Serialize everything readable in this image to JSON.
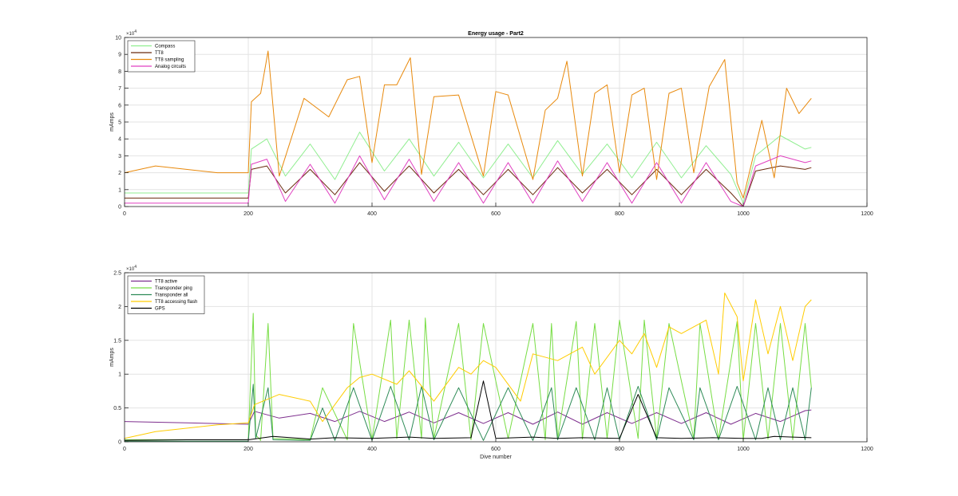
{
  "chart_data": [
    {
      "type": "line",
      "title": "Energy usage - Part2",
      "xlabel": "",
      "ylabel": "mAmps",
      "xlim": [
        0,
        1200
      ],
      "ylim": [
        0,
        100000
      ],
      "y_exponent_label": "×10",
      "y_exponent": "4",
      "xticks": [
        0,
        200,
        400,
        600,
        800,
        1000,
        1200
      ],
      "yticks": [
        0,
        10000,
        20000,
        30000,
        40000,
        50000,
        60000,
        70000,
        80000,
        90000,
        100000
      ],
      "ytick_labels": [
        "0",
        "1",
        "2",
        "3",
        "4",
        "5",
        "6",
        "7",
        "8",
        "9",
        "10"
      ],
      "grid": true,
      "legend_position": "top-left",
      "series": [
        {
          "name": "Compass",
          "color": "#90ee90",
          "x": [
            0,
            100,
            200,
            205,
            230,
            260,
            300,
            340,
            380,
            420,
            460,
            500,
            540,
            580,
            620,
            660,
            700,
            740,
            780,
            820,
            860,
            900,
            940,
            980,
            1000,
            1020,
            1060,
            1100,
            1110
          ],
          "y": [
            8000,
            8000,
            8000,
            34000,
            40000,
            18000,
            37000,
            16000,
            44000,
            21000,
            40000,
            18000,
            38000,
            17000,
            37000,
            17000,
            39000,
            19000,
            37000,
            17000,
            38000,
            17000,
            36000,
            19000,
            2000,
            30000,
            42000,
            34000,
            35000
          ]
        },
        {
          "name": "TT8",
          "color": "#6b2b0e",
          "x": [
            0,
            100,
            200,
            205,
            230,
            260,
            300,
            340,
            380,
            420,
            460,
            500,
            540,
            580,
            620,
            660,
            700,
            740,
            780,
            820,
            860,
            900,
            940,
            980,
            1000,
            1020,
            1060,
            1100,
            1110
          ],
          "y": [
            5000,
            5000,
            5000,
            22000,
            24000,
            8000,
            22000,
            7000,
            26000,
            9000,
            24000,
            8000,
            22000,
            7000,
            22000,
            7000,
            23000,
            8000,
            22000,
            7000,
            22000,
            7000,
            22000,
            8000,
            0,
            21000,
            24000,
            22000,
            23000
          ]
        },
        {
          "name": "TT8 sampling",
          "color": "#e8890c",
          "x": [
            0,
            50,
            100,
            150,
            200,
            205,
            220,
            232,
            250,
            290,
            330,
            360,
            380,
            400,
            420,
            440,
            462,
            480,
            500,
            540,
            580,
            600,
            620,
            660,
            680,
            700,
            715,
            740,
            760,
            780,
            800,
            820,
            840,
            860,
            880,
            900,
            920,
            945,
            970,
            990,
            1000,
            1030,
            1050,
            1070,
            1090,
            1110
          ],
          "y": [
            20000,
            24000,
            22000,
            20000,
            20000,
            62000,
            67000,
            92000,
            18000,
            64000,
            53000,
            75000,
            77000,
            26000,
            72000,
            72000,
            88000,
            19000,
            65000,
            66000,
            18000,
            68000,
            66000,
            16000,
            57000,
            64000,
            86000,
            18000,
            67000,
            72000,
            20000,
            66000,
            70000,
            16000,
            67000,
            70000,
            20000,
            71000,
            87000,
            14000,
            5000,
            51000,
            17000,
            70000,
            55000,
            64000
          ]
        },
        {
          "name": "Analog circuits",
          "color": "#e040c0",
          "x": [
            0,
            100,
            200,
            205,
            230,
            260,
            300,
            340,
            380,
            420,
            460,
            500,
            540,
            580,
            620,
            660,
            700,
            740,
            780,
            820,
            860,
            900,
            940,
            980,
            1000,
            1020,
            1060,
            1100,
            1110
          ],
          "y": [
            2000,
            2000,
            2000,
            25000,
            28000,
            3000,
            25000,
            2000,
            30000,
            4000,
            28000,
            3000,
            26000,
            2000,
            26000,
            2000,
            27000,
            3000,
            26000,
            2000,
            26000,
            2000,
            26000,
            3000,
            0,
            24000,
            30000,
            26000,
            27000
          ]
        }
      ]
    },
    {
      "type": "line",
      "title": "",
      "xlabel": "Dive number",
      "ylabel": "mAmps",
      "xlim": [
        0,
        1200
      ],
      "ylim": [
        0,
        25000
      ],
      "y_exponent_label": "×10",
      "y_exponent": "4",
      "xticks": [
        0,
        200,
        400,
        600,
        800,
        1000,
        1200
      ],
      "yticks": [
        0,
        5000,
        10000,
        15000,
        20000,
        25000
      ],
      "ytick_labels": [
        "0",
        "0.5",
        "1",
        "1.5",
        "2",
        "2.5"
      ],
      "grid": true,
      "legend_position": "top-left",
      "series": [
        {
          "name": "TT8 active",
          "color": "#7e2f8e",
          "x": [
            0,
            100,
            200,
            210,
            250,
            300,
            340,
            380,
            420,
            460,
            500,
            540,
            580,
            620,
            660,
            700,
            740,
            780,
            820,
            860,
            900,
            940,
            980,
            1020,
            1060,
            1100,
            1110
          ],
          "y": [
            3000,
            2800,
            2600,
            4500,
            3500,
            4200,
            3000,
            4500,
            3000,
            4400,
            2800,
            4300,
            2700,
            4300,
            2600,
            4400,
            2600,
            4300,
            2700,
            4300,
            2700,
            4300,
            2600,
            4200,
            3000,
            4600,
            4700
          ]
        },
        {
          "name": "Transponder ping",
          "color": "#77dd44",
          "x": [
            0,
            100,
            200,
            208,
            212,
            220,
            232,
            240,
            300,
            320,
            360,
            370,
            400,
            430,
            440,
            460,
            480,
            486,
            500,
            540,
            560,
            580,
            620,
            660,
            680,
            690,
            700,
            730,
            740,
            760,
            780,
            800,
            830,
            840,
            860,
            880,
            920,
            930,
            960,
            990,
            1000,
            1020,
            1040,
            1060,
            1080,
            1100,
            1110
          ],
          "y": [
            300,
            300,
            300,
            19000,
            1000,
            200,
            17500,
            500,
            300,
            8000,
            300,
            17500,
            300,
            18000,
            500,
            18000,
            500,
            18300,
            500,
            17500,
            300,
            17500,
            500,
            17500,
            300,
            17500,
            500,
            17800,
            400,
            17500,
            500,
            18000,
            500,
            18000,
            500,
            17500,
            500,
            17500,
            400,
            17800,
            200,
            17500,
            400,
            17500,
            300,
            17500,
            8000
          ]
        },
        {
          "name": "Transponder all",
          "color": "#2e8b57",
          "x": [
            0,
            100,
            200,
            208,
            212,
            232,
            240,
            300,
            320,
            340,
            370,
            400,
            430,
            460,
            480,
            500,
            540,
            580,
            620,
            660,
            690,
            700,
            730,
            760,
            780,
            800,
            830,
            860,
            880,
            920,
            930,
            960,
            990,
            1020,
            1040,
            1060,
            1080,
            1100,
            1110
          ],
          "y": [
            100,
            100,
            100,
            8500,
            500,
            8000,
            300,
            200,
            5000,
            200,
            8000,
            200,
            8200,
            300,
            8200,
            300,
            8000,
            200,
            8000,
            200,
            8000,
            300,
            8000,
            300,
            8000,
            300,
            8200,
            300,
            8000,
            300,
            8000,
            300,
            8200,
            300,
            8000,
            300,
            8000,
            300,
            8000
          ]
        },
        {
          "name": "TT8 accessing flash",
          "color": "#ffcc00",
          "x": [
            0,
            50,
            100,
            150,
            200,
            210,
            250,
            300,
            320,
            360,
            380,
            400,
            440,
            460,
            500,
            540,
            560,
            580,
            600,
            640,
            660,
            700,
            740,
            760,
            800,
            820,
            840,
            860,
            880,
            900,
            940,
            960,
            970,
            990,
            1000,
            1020,
            1040,
            1060,
            1080,
            1100,
            1110
          ],
          "y": [
            500,
            1500,
            2000,
            2500,
            2800,
            5500,
            7000,
            6000,
            3000,
            8000,
            9500,
            10000,
            8500,
            10500,
            6000,
            11000,
            10000,
            12000,
            11000,
            6000,
            13000,
            12000,
            14000,
            10000,
            15000,
            13000,
            16000,
            11000,
            17000,
            16000,
            18000,
            10000,
            22000,
            18500,
            9000,
            21000,
            13000,
            20000,
            12000,
            20000,
            21000
          ]
        },
        {
          "name": "GPS",
          "color": "#000000",
          "x": [
            0,
            100,
            200,
            240,
            300,
            340,
            400,
            460,
            500,
            560,
            580,
            600,
            660,
            700,
            740,
            800,
            830,
            860,
            900,
            950,
            1000,
            1030,
            1050,
            1080,
            1110
          ],
          "y": [
            200,
            300,
            300,
            800,
            400,
            600,
            500,
            700,
            500,
            600,
            9000,
            500,
            700,
            500,
            600,
            500,
            7000,
            600,
            500,
            600,
            500,
            500,
            800,
            700,
            600
          ]
        }
      ]
    }
  ]
}
